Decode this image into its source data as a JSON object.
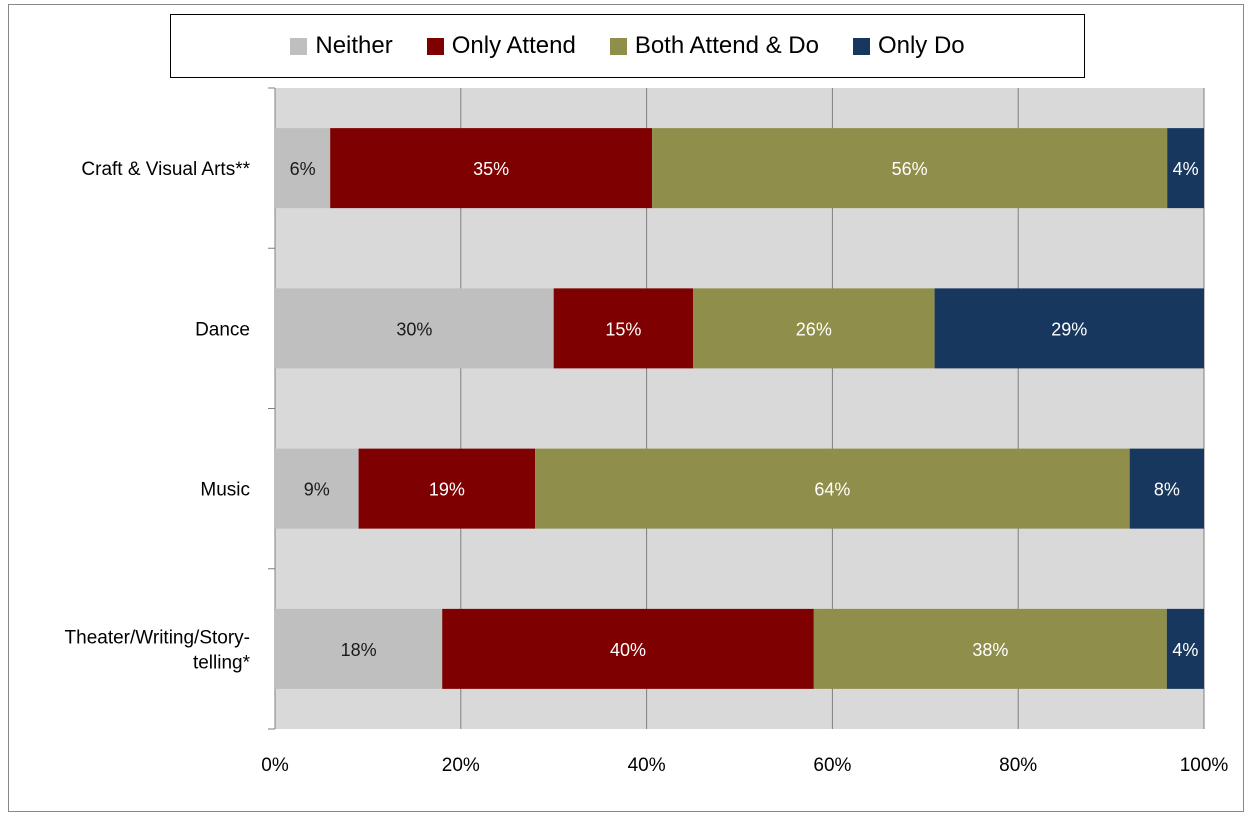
{
  "chart_data": {
    "type": "bar",
    "orientation": "horizontal",
    "stacked": true,
    "title": "",
    "xlabel": "",
    "ylabel": "",
    "xlim": [
      0,
      100
    ],
    "x_ticks": [
      "0%",
      "20%",
      "40%",
      "60%",
      "80%",
      "100%"
    ],
    "x_tick_values": [
      0,
      20,
      40,
      60,
      80,
      100
    ],
    "grid": true,
    "legend_position": "top",
    "categories": [
      "Craft & Visual Arts**",
      "Dance",
      "Music",
      "Theater/Writing/Story-telling*"
    ],
    "category_lines": [
      [
        "Craft & Visual Arts**"
      ],
      [
        "Dance"
      ],
      [
        "Music"
      ],
      [
        "Theater/Writing/Story-",
        "telling*"
      ]
    ],
    "series": [
      {
        "name": "Neither",
        "color": "#bfbfbf",
        "label_color": "#1a1a1a",
        "values": [
          6,
          30,
          9,
          18
        ],
        "labels": [
          "6%",
          "30%",
          "9%",
          "18%"
        ]
      },
      {
        "name": "Only Attend",
        "color": "#7f0000",
        "label_color": "#ffffff",
        "values": [
          35,
          15,
          19,
          40
        ],
        "labels": [
          "35%",
          "15%",
          "19%",
          "40%"
        ]
      },
      {
        "name": "Both Attend & Do",
        "color": "#8f8e4a",
        "label_color": "#ffffff",
        "values": [
          56,
          26,
          64,
          38
        ],
        "labels": [
          "56%",
          "26%",
          "64%",
          "38%"
        ]
      },
      {
        "name": "Only Do",
        "color": "#17375e",
        "label_color": "#ffffff",
        "values": [
          4,
          29,
          8,
          4
        ],
        "labels": [
          "4%",
          "29%",
          "8%",
          "4%"
        ]
      }
    ],
    "plot_background": "#d9d9d9",
    "gridline_color": "#7f7f7f"
  }
}
